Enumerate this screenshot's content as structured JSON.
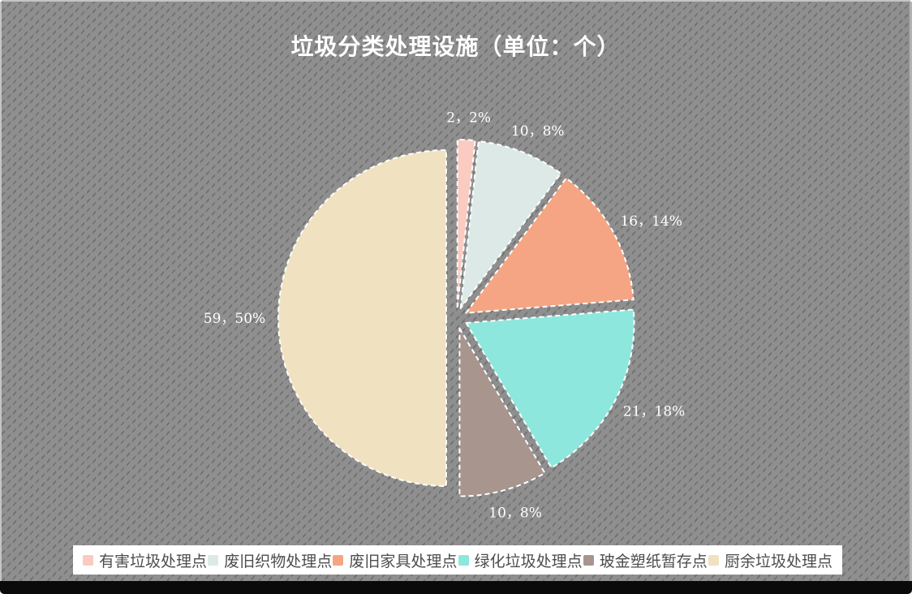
{
  "title": "垃圾分类处理设施（单位：个）",
  "background": {
    "base_color": "#8f8f8f",
    "hatch_color": "#777777",
    "bottom_bar_color": "#0a0a0a",
    "legend_strip_color": "#ffffff"
  },
  "chart_data": {
    "type": "pie",
    "title": "垃圾分类处理设施（单位：个）",
    "unit": "个",
    "categories": [
      "有害垃圾处理点",
      "废旧织物处理点",
      "废旧家具处理点",
      "绿化垃圾处理点",
      "玻金塑纸暂存点",
      "厨余垃圾处理点"
    ],
    "values": [
      2,
      10,
      16,
      21,
      10,
      59
    ],
    "percents": [
      "2%",
      "8%",
      "14%",
      "18%",
      "8%",
      "50%"
    ],
    "data_labels": [
      "2，2%",
      "10，8%",
      "16，14%",
      "21，18%",
      "10，8%",
      "59，50%"
    ],
    "colors": [
      "#f9cbc1",
      "#dde9e6",
      "#f5a583",
      "#8de7dd",
      "#a7958e",
      "#f0e1c1"
    ],
    "start_angle_deg": 0,
    "direction": "clockwise",
    "exploded": true,
    "slice_border": {
      "color": "#ffffff",
      "style": "dashed"
    },
    "label_color": "#ffffff",
    "title_color": "#ffffff",
    "legend_position": "bottom",
    "legend_text_color": "#4d4d4d"
  }
}
